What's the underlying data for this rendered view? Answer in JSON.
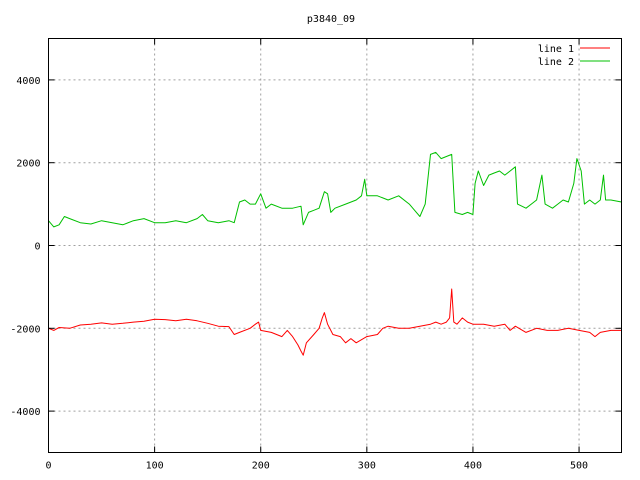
{
  "chart_data": {
    "type": "line",
    "title": "p3840_09",
    "xlabel": "",
    "ylabel": "",
    "xlim": [
      0,
      540
    ],
    "ylim": [
      -5000,
      5000
    ],
    "xticks": [
      0,
      100,
      200,
      300,
      400,
      500
    ],
    "yticks": [
      -4000,
      -2000,
      0,
      2000,
      4000
    ],
    "xtick_labels": [
      "0",
      "100",
      "200",
      "300",
      "400",
      "500"
    ],
    "ytick_labels": [
      "-4000",
      "-2000",
      "0",
      "2000",
      "4000"
    ],
    "grid": true,
    "legend_position": "top-right",
    "series": [
      {
        "name": "line 1",
        "color": "#ff0000",
        "points": [
          [
            0,
            -2000
          ],
          [
            5,
            -2050
          ],
          [
            10,
            -1980
          ],
          [
            20,
            -2000
          ],
          [
            30,
            -1920
          ],
          [
            40,
            -1900
          ],
          [
            50,
            -1870
          ],
          [
            60,
            -1900
          ],
          [
            70,
            -1880
          ],
          [
            80,
            -1850
          ],
          [
            90,
            -1830
          ],
          [
            100,
            -1780
          ],
          [
            110,
            -1790
          ],
          [
            120,
            -1820
          ],
          [
            130,
            -1780
          ],
          [
            140,
            -1820
          ],
          [
            150,
            -1880
          ],
          [
            160,
            -1950
          ],
          [
            170,
            -1960
          ],
          [
            175,
            -2150
          ],
          [
            180,
            -2100
          ],
          [
            190,
            -2000
          ],
          [
            195,
            -1900
          ],
          [
            198,
            -1850
          ],
          [
            200,
            -2050
          ],
          [
            210,
            -2100
          ],
          [
            220,
            -2200
          ],
          [
            225,
            -2050
          ],
          [
            230,
            -2200
          ],
          [
            235,
            -2400
          ],
          [
            238,
            -2550
          ],
          [
            240,
            -2650
          ],
          [
            243,
            -2350
          ],
          [
            250,
            -2150
          ],
          [
            255,
            -2000
          ],
          [
            258,
            -1750
          ],
          [
            260,
            -1620
          ],
          [
            263,
            -1900
          ],
          [
            268,
            -2150
          ],
          [
            275,
            -2200
          ],
          [
            280,
            -2350
          ],
          [
            285,
            -2250
          ],
          [
            290,
            -2350
          ],
          [
            300,
            -2200
          ],
          [
            310,
            -2150
          ],
          [
            315,
            -2000
          ],
          [
            320,
            -1950
          ],
          [
            330,
            -2000
          ],
          [
            340,
            -2000
          ],
          [
            350,
            -1950
          ],
          [
            360,
            -1900
          ],
          [
            365,
            -1850
          ],
          [
            370,
            -1900
          ],
          [
            375,
            -1850
          ],
          [
            378,
            -1750
          ],
          [
            380,
            -1050
          ],
          [
            382,
            -1850
          ],
          [
            385,
            -1900
          ],
          [
            390,
            -1750
          ],
          [
            395,
            -1850
          ],
          [
            400,
            -1900
          ],
          [
            410,
            -1900
          ],
          [
            420,
            -1950
          ],
          [
            430,
            -1900
          ],
          [
            435,
            -2050
          ],
          [
            440,
            -1950
          ],
          [
            450,
            -2100
          ],
          [
            460,
            -2000
          ],
          [
            470,
            -2050
          ],
          [
            480,
            -2050
          ],
          [
            490,
            -2000
          ],
          [
            500,
            -2050
          ],
          [
            510,
            -2100
          ],
          [
            515,
            -2200
          ],
          [
            520,
            -2100
          ],
          [
            530,
            -2050
          ],
          [
            540,
            -2050
          ]
        ]
      },
      {
        "name": "line 2",
        "color": "#00c000",
        "points": [
          [
            0,
            600
          ],
          [
            5,
            450
          ],
          [
            10,
            500
          ],
          [
            15,
            700
          ],
          [
            20,
            650
          ],
          [
            30,
            550
          ],
          [
            40,
            520
          ],
          [
            50,
            600
          ],
          [
            60,
            550
          ],
          [
            70,
            500
          ],
          [
            80,
            600
          ],
          [
            90,
            650
          ],
          [
            100,
            550
          ],
          [
            110,
            550
          ],
          [
            120,
            600
          ],
          [
            130,
            550
          ],
          [
            140,
            650
          ],
          [
            145,
            750
          ],
          [
            150,
            600
          ],
          [
            160,
            550
          ],
          [
            170,
            600
          ],
          [
            175,
            550
          ],
          [
            180,
            1050
          ],
          [
            185,
            1100
          ],
          [
            190,
            1000
          ],
          [
            195,
            1000
          ],
          [
            200,
            1250
          ],
          [
            205,
            900
          ],
          [
            210,
            1000
          ],
          [
            220,
            900
          ],
          [
            230,
            900
          ],
          [
            238,
            950
          ],
          [
            240,
            500
          ],
          [
            245,
            800
          ],
          [
            250,
            850
          ],
          [
            255,
            900
          ],
          [
            260,
            1300
          ],
          [
            263,
            1250
          ],
          [
            266,
            800
          ],
          [
            270,
            900
          ],
          [
            280,
            1000
          ],
          [
            290,
            1100
          ],
          [
            295,
            1200
          ],
          [
            298,
            1600
          ],
          [
            300,
            1200
          ],
          [
            310,
            1200
          ],
          [
            320,
            1100
          ],
          [
            330,
            1200
          ],
          [
            340,
            1000
          ],
          [
            345,
            850
          ],
          [
            350,
            700
          ],
          [
            355,
            1000
          ],
          [
            360,
            2200
          ],
          [
            365,
            2250
          ],
          [
            370,
            2100
          ],
          [
            375,
            2150
          ],
          [
            380,
            2200
          ],
          [
            383,
            800
          ],
          [
            390,
            750
          ],
          [
            395,
            800
          ],
          [
            400,
            750
          ],
          [
            402,
            1500
          ],
          [
            405,
            1800
          ],
          [
            410,
            1450
          ],
          [
            415,
            1700
          ],
          [
            420,
            1750
          ],
          [
            425,
            1800
          ],
          [
            430,
            1700
          ],
          [
            435,
            1800
          ],
          [
            440,
            1900
          ],
          [
            442,
            1000
          ],
          [
            450,
            900
          ],
          [
            455,
            1000
          ],
          [
            460,
            1100
          ],
          [
            465,
            1700
          ],
          [
            468,
            1000
          ],
          [
            475,
            900
          ],
          [
            480,
            1000
          ],
          [
            485,
            1100
          ],
          [
            490,
            1050
          ],
          [
            495,
            1500
          ],
          [
            498,
            2100
          ],
          [
            502,
            1800
          ],
          [
            505,
            1000
          ],
          [
            510,
            1100
          ],
          [
            515,
            1000
          ],
          [
            520,
            1100
          ],
          [
            523,
            1700
          ],
          [
            525,
            1100
          ],
          [
            530,
            1100
          ],
          [
            540,
            1050
          ]
        ]
      }
    ]
  }
}
